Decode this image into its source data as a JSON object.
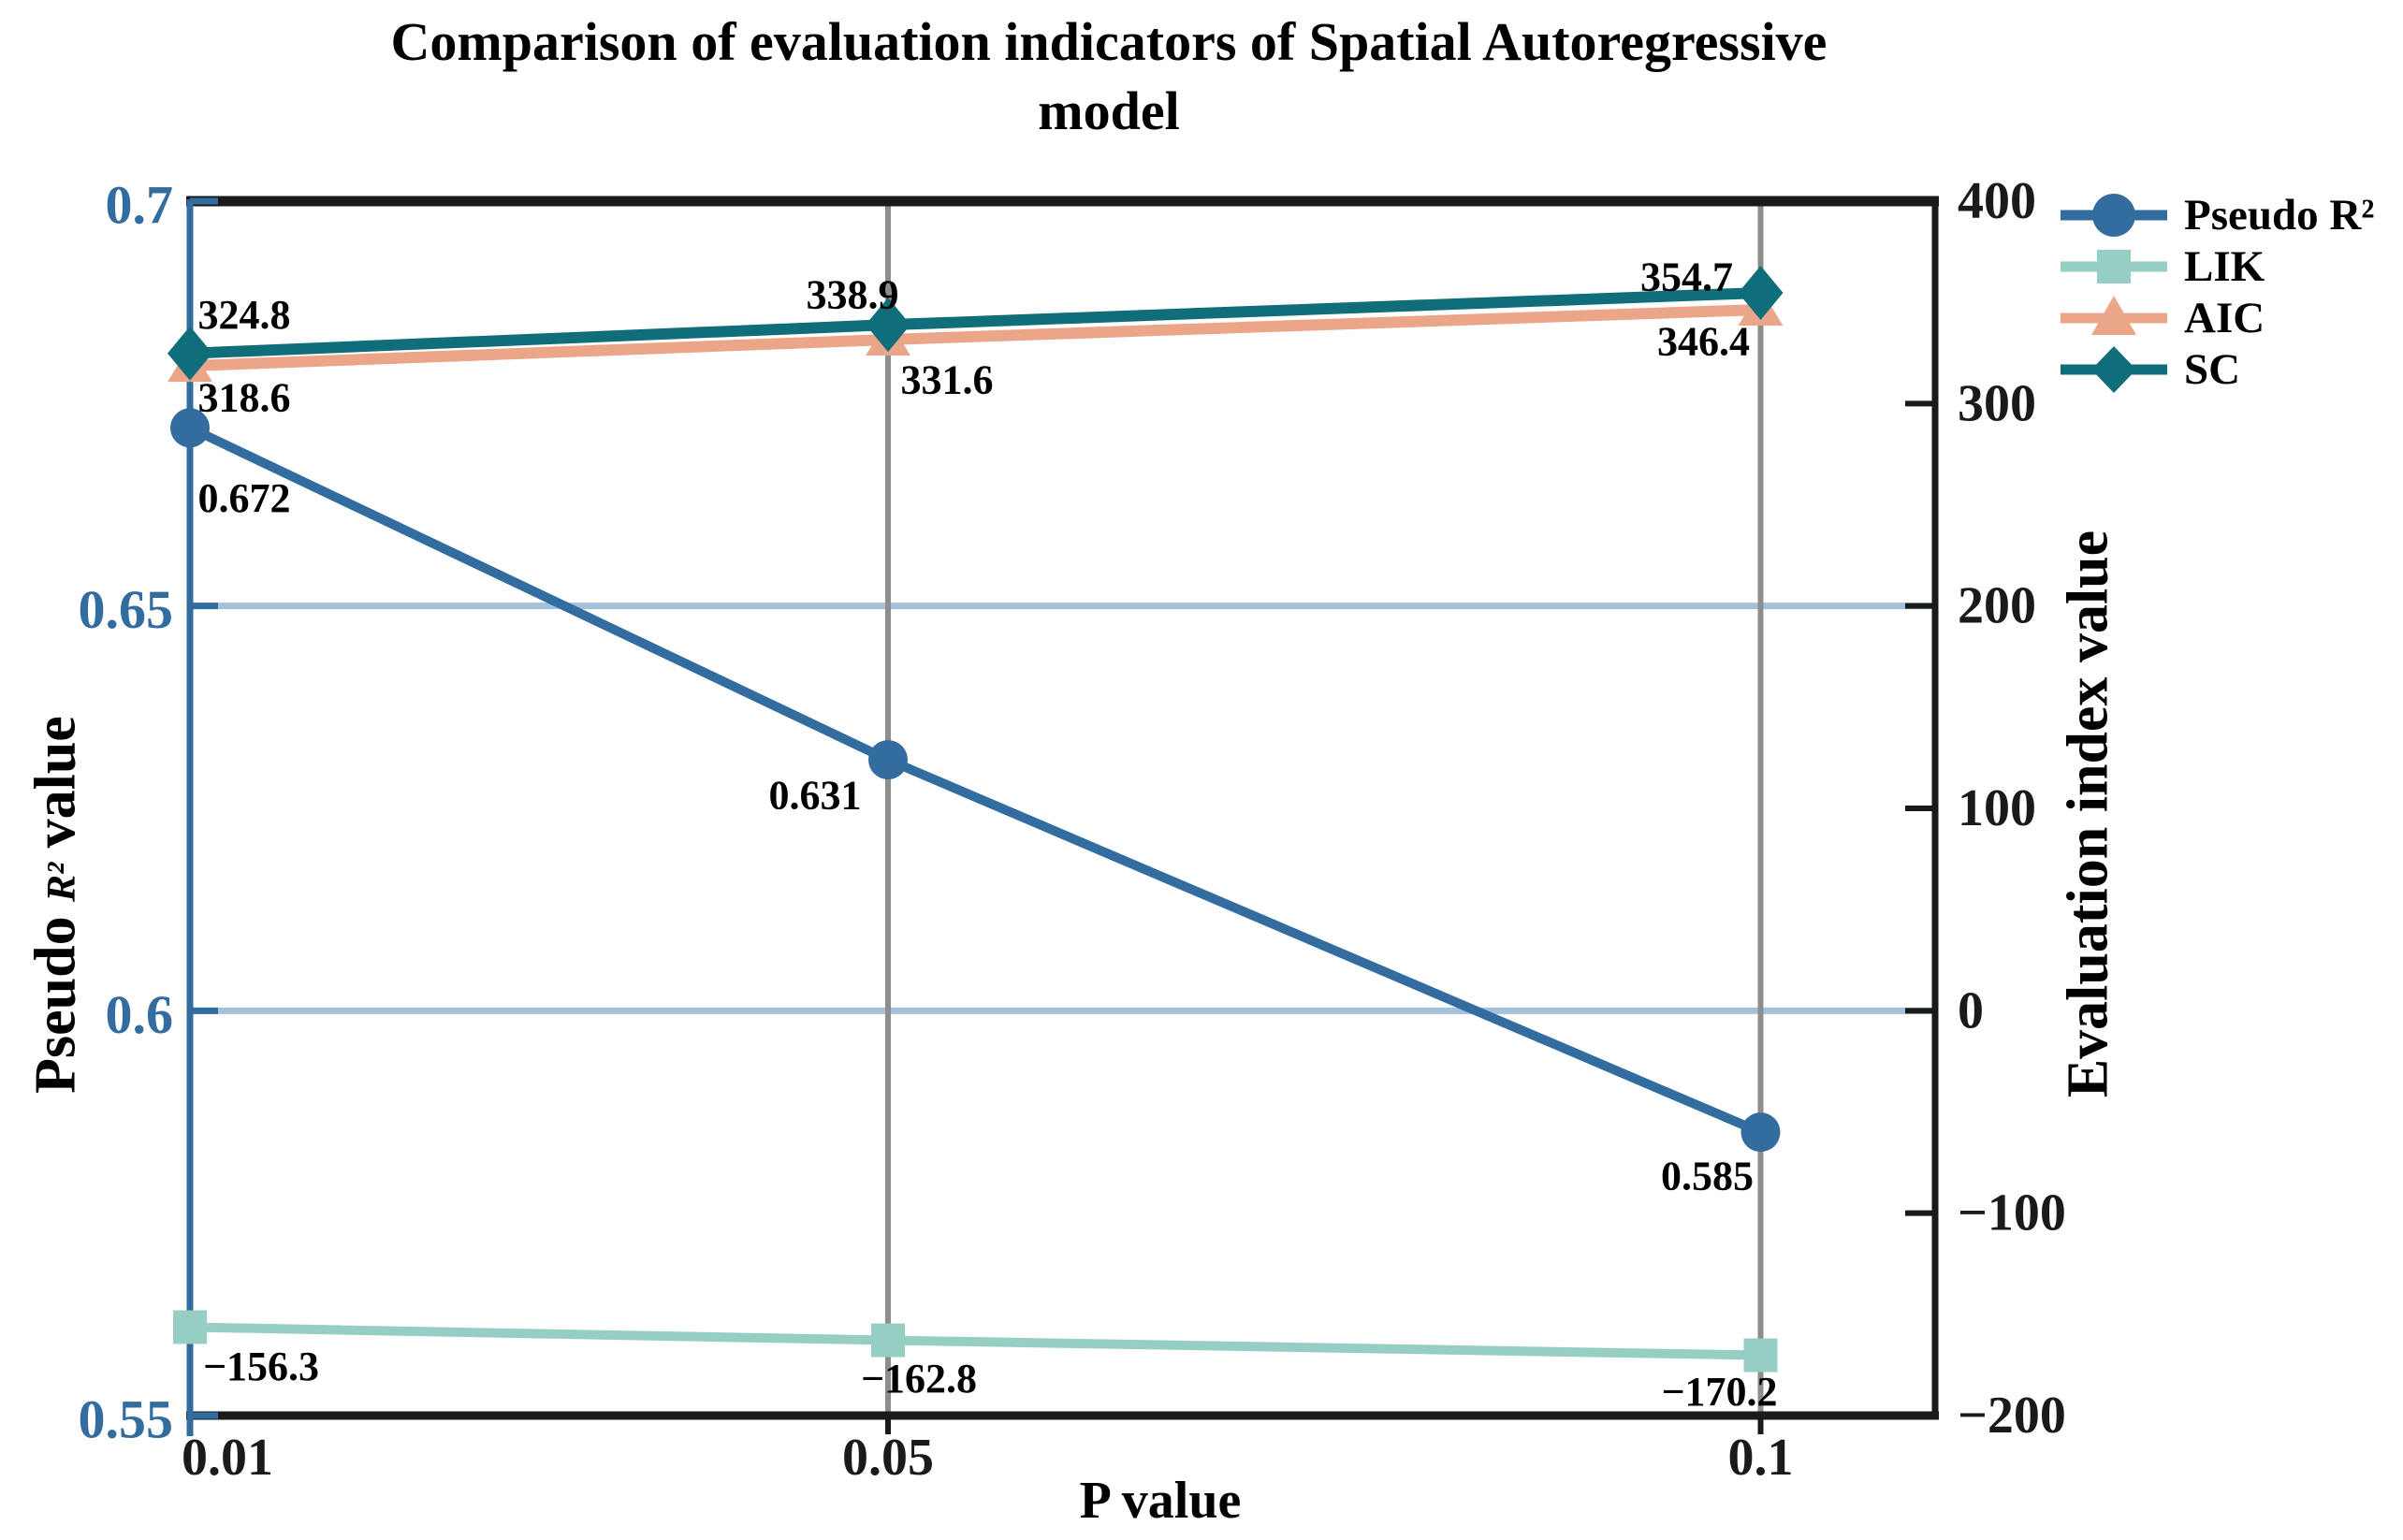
{
  "title": {
    "line1": "Comparison of evaluation indicators of Spatial Autoregressive",
    "line2": "model"
  },
  "axis_titles": {
    "x": "P value",
    "y_left_prefix": "Pseudo ",
    "y_left_math": "R²",
    "y_left_suffix": " value",
    "y_right": "Evaluation index value"
  },
  "chart_data": {
    "type": "line",
    "title": "Comparison of evaluation indicators of Spatial Autoregressive model",
    "x": [
      0.01,
      0.05,
      0.1
    ],
    "x_axis": {
      "label": "P value",
      "ticks": [
        "0.01",
        "0.05",
        "0.1"
      ],
      "tick_values": [
        0.01,
        0.05,
        0.1
      ],
      "tick_label_dx": [
        40,
        0,
        0
      ],
      "range": [
        0.01,
        0.11
      ],
      "color": "#1a1a1a"
    },
    "y_axis_left": {
      "label": "Pseudo R² value",
      "ticks": [
        "0.7",
        "0.65",
        "0.6",
        "0.55"
      ],
      "tick_values": [
        0.7,
        0.65,
        0.6,
        0.55
      ],
      "range": [
        0.55,
        0.7
      ],
      "color": "#336c9f"
    },
    "y_axis_right": {
      "label": "Evaluation index value",
      "ticks": [
        "400",
        "300",
        "200",
        "100",
        "0",
        "−100",
        "−200"
      ],
      "tick_values": [
        400,
        300,
        200,
        100,
        0,
        -100,
        -200
      ],
      "range": [
        -200,
        400
      ],
      "color": "#1a1a1a"
    },
    "grid": {
      "horizontal_at_left_values": [
        0.65,
        0.6
      ],
      "h_color": "#a3c1db",
      "vertical_at_x": [
        0.05,
        0.1
      ],
      "v_color": "#8d8d8d"
    },
    "series": [
      {
        "name": "Pseudo R²",
        "axis": "left",
        "color": "#336c9f",
        "marker": "circle",
        "line_width": 10,
        "values": [
          0.672,
          0.631,
          0.585
        ],
        "labels": [
          "0.672",
          "0.631",
          "0.585"
        ],
        "label_offsets": [
          [
            58,
            75
          ],
          [
            -78,
            38
          ],
          [
            -57,
            47
          ]
        ]
      },
      {
        "name": "LIK",
        "axis": "right",
        "color": "#96cec4",
        "marker": "square",
        "line_width": 10,
        "values": [
          -156.3,
          -162.8,
          -170.2
        ],
        "labels": [
          "−156.3",
          "−162.8",
          "−170.2"
        ],
        "label_offsets": [
          [
            76,
            42
          ],
          [
            33,
            41
          ],
          [
            -44,
            39
          ]
        ]
      },
      {
        "name": "AIC",
        "axis": "right",
        "color": "#eba689",
        "marker": "triangle",
        "line_width": 12,
        "values": [
          318.6,
          331.6,
          346.4
        ],
        "labels": [
          "318.6",
          "331.6",
          "346.4"
        ],
        "label_offsets": [
          [
            58,
            34
          ],
          [
            63,
            43
          ],
          [
            -61,
            34
          ]
        ]
      },
      {
        "name": "SC",
        "axis": "right",
        "color": "#106e7a",
        "marker": "diamond",
        "line_width": 12,
        "values": [
          324.8,
          338.9,
          354.7
        ],
        "labels": [
          "324.8",
          "338.9",
          "354.7"
        ],
        "label_offsets": [
          [
            58,
            -41
          ],
          [
            -38,
            -32
          ],
          [
            -79,
            -17
          ]
        ]
      }
    ],
    "legend_position": "upper-right-outside",
    "legend_order": [
      "Pseudo R²",
      "LIK",
      "AIC",
      "SC"
    ]
  }
}
